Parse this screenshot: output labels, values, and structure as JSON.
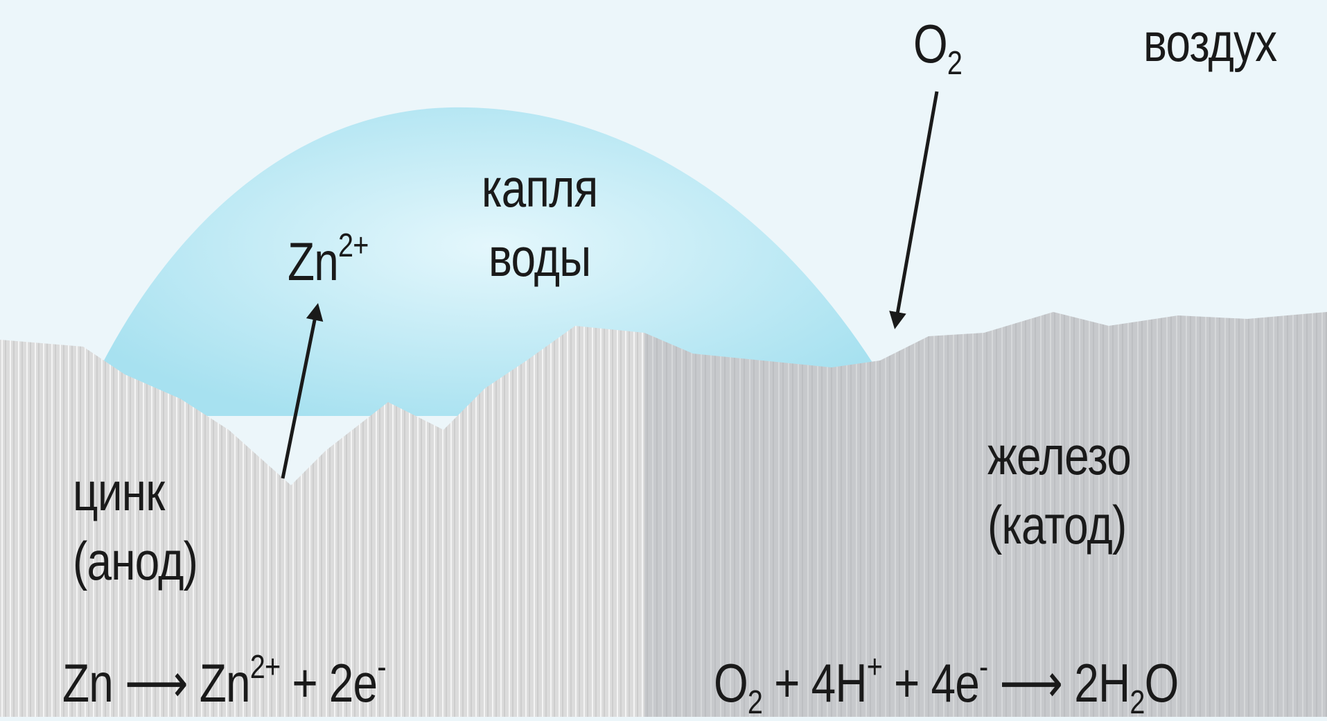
{
  "labels": {
    "air": "воздух",
    "drop_line1": "капля",
    "drop_line2": "воды",
    "zinc_line1": "цинк",
    "zinc_line2": "(анод)",
    "iron_line1": "железо",
    "iron_line2": "(катод)"
  },
  "species": {
    "oxygen": {
      "base": "O",
      "sub": "2"
    },
    "zinc_ion": {
      "base": "Zn",
      "sup": "2+"
    }
  },
  "reactions": {
    "anode": {
      "reactant": "Zn",
      "arrow": "⟶",
      "product_base": "Zn",
      "product_sup": "2+",
      "plus": "+",
      "electrons": "2e",
      "electron_sup": "-"
    },
    "cathode": {
      "o_base": "O",
      "o_sub": "2",
      "plus1": "+",
      "h_coef": "4H",
      "h_sup": "+",
      "plus2": "+",
      "e_coef": "4e",
      "e_sup": "-",
      "arrow": "⟶",
      "water_coef": "2H",
      "water_sub": "2",
      "water_o": "O"
    }
  },
  "colors": {
    "background": "#ecf6fa",
    "water_drop": "#a7e1f0",
    "zinc": "#dadada",
    "iron": "#c6c8cb",
    "text": "#1a1a1a"
  }
}
